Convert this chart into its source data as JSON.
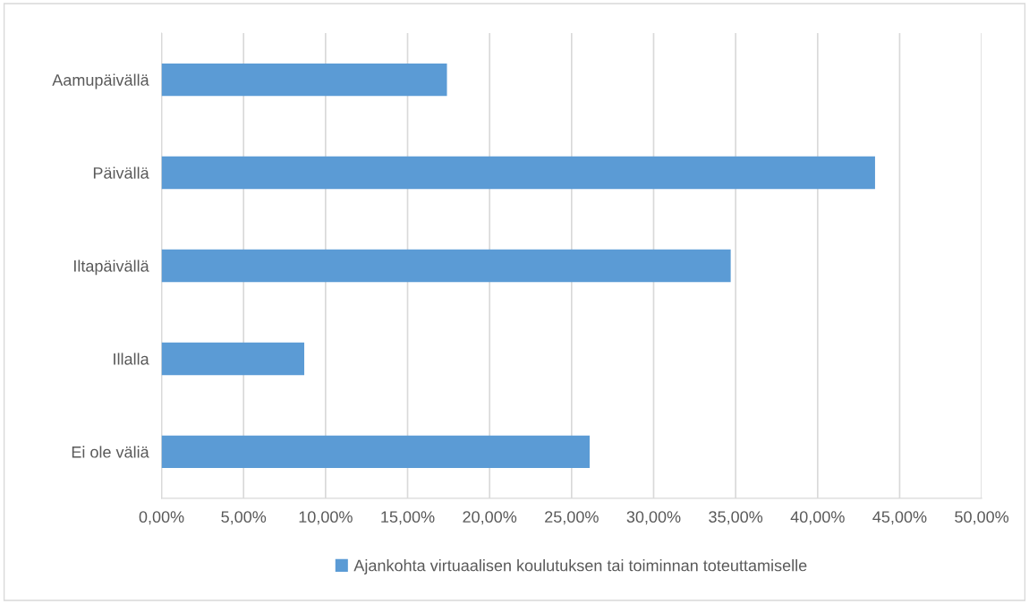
{
  "chart_data": {
    "type": "bar",
    "orientation": "horizontal",
    "categories": [
      "Aamupäivällä",
      "Päivällä",
      "Iltapäivällä",
      "Illalla",
      "Ei ole väliä"
    ],
    "series": [
      {
        "name": "Ajankohta virtuaalisen koulutuksen tai toiminnan toteuttamiselle",
        "color": "#5b9bd5",
        "values": [
          17.4,
          43.5,
          34.7,
          8.7,
          26.1
        ]
      }
    ],
    "xlim": [
      0,
      50
    ],
    "xticks": [
      {
        "value": 0,
        "label": "0,00%"
      },
      {
        "value": 5,
        "label": "5,00%"
      },
      {
        "value": 10,
        "label": "10,00%"
      },
      {
        "value": 15,
        "label": "15,00%"
      },
      {
        "value": 20,
        "label": "20,00%"
      },
      {
        "value": 25,
        "label": "25,00%"
      },
      {
        "value": 30,
        "label": "30,00%"
      },
      {
        "value": 35,
        "label": "35,00%"
      },
      {
        "value": 40,
        "label": "40,00%"
      },
      {
        "value": 45,
        "label": "45,00%"
      },
      {
        "value": 50,
        "label": "50,00%"
      }
    ],
    "grid": "x",
    "legend": "bottom"
  }
}
